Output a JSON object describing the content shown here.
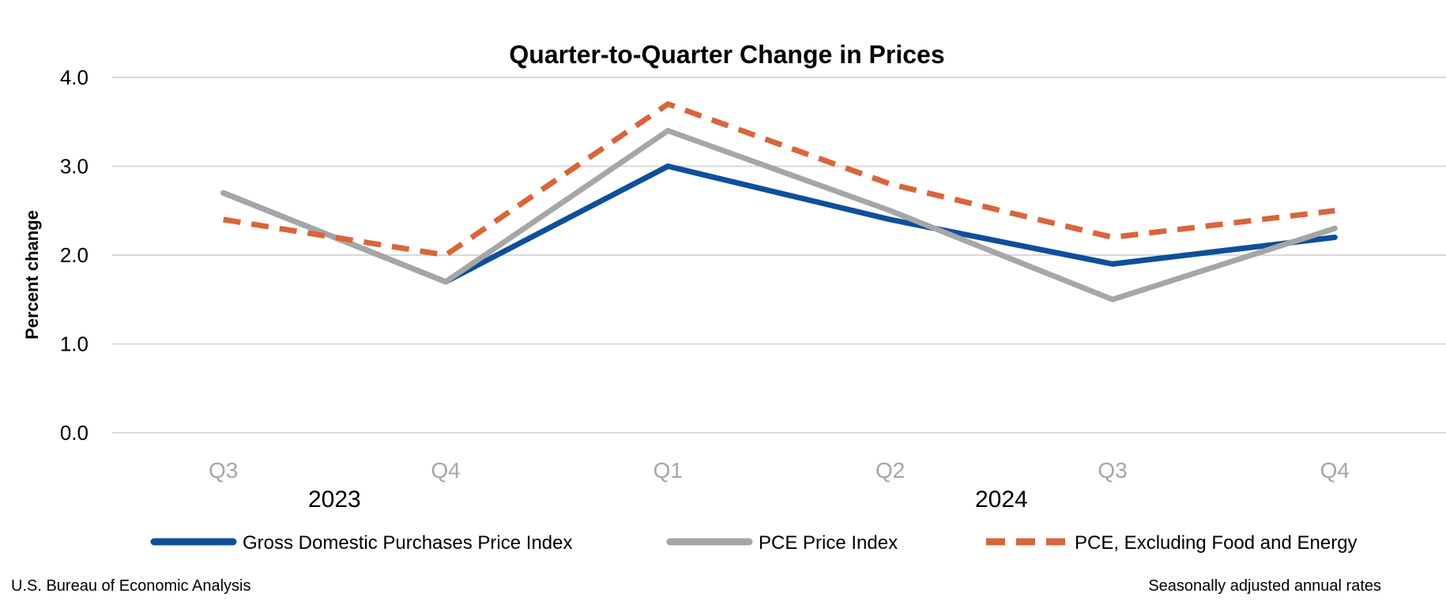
{
  "chart_data": {
    "type": "line",
    "title": "Quarter-to-Quarter Change in Prices",
    "ylabel": "Percent change",
    "xlabel": "",
    "categories": [
      "Q3",
      "Q4",
      "Q1",
      "Q2",
      "Q3",
      "Q4"
    ],
    "year_groups": [
      {
        "label": "2023",
        "start": 0,
        "end": 1
      },
      {
        "label": "2024",
        "start": 2,
        "end": 5
      }
    ],
    "ylim": [
      0,
      4
    ],
    "yticks": [
      "0.0",
      "1.0",
      "2.0",
      "3.0",
      "4.0"
    ],
    "grid": true,
    "legend_position": "bottom",
    "series": [
      {
        "name": "Gross Domestic Purchases Price Index",
        "values": [
          2.7,
          1.7,
          3.0,
          2.4,
          1.9,
          2.2
        ],
        "color": "#0d4f9a",
        "style": "solid"
      },
      {
        "name": "PCE Price Index",
        "values": [
          2.7,
          1.7,
          3.4,
          2.5,
          1.5,
          2.3
        ],
        "color": "#a6a6a6",
        "style": "solid"
      },
      {
        "name": "PCE, Excluding Food and Energy",
        "values": [
          2.4,
          2.0,
          3.7,
          2.8,
          2.2,
          2.5
        ],
        "color": "#d9653b",
        "style": "dashed"
      }
    ]
  },
  "footer": {
    "source": "U.S. Bureau of Economic Analysis",
    "note": "Seasonally adjusted annual rates"
  }
}
